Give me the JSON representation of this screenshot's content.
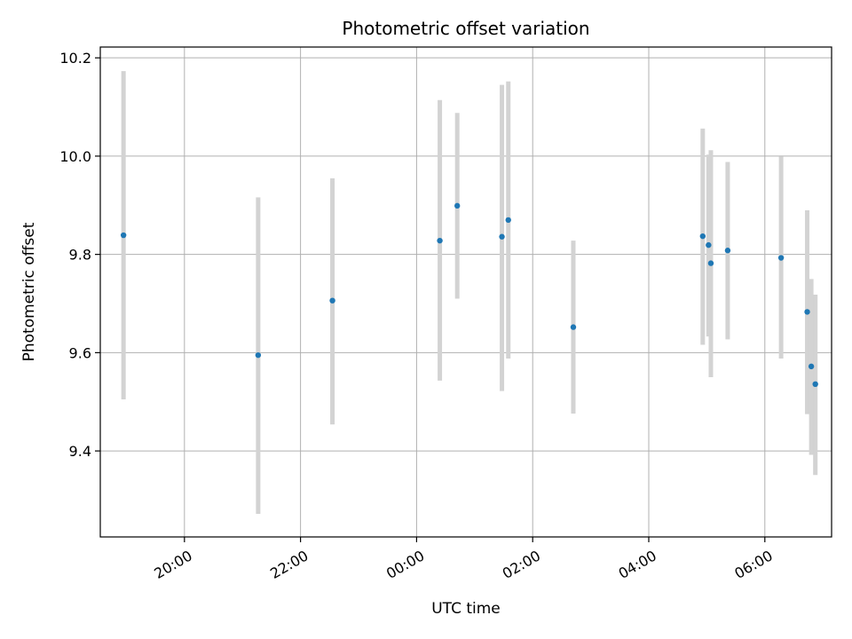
{
  "chart_data": {
    "type": "scatter",
    "title": "Photometric offset variation",
    "xlabel": "UTC time",
    "ylabel": "Photometric offset",
    "grid": true,
    "legend": "none",
    "x_unit": "UTC hours (24+ = next day)",
    "xlim": [
      18.55,
      31.15
    ],
    "ylim": [
      9.225,
      10.222
    ],
    "x_ticks": [
      {
        "value": 20,
        "label": "20:00"
      },
      {
        "value": 22,
        "label": "22:00"
      },
      {
        "value": 24,
        "label": "00:00"
      },
      {
        "value": 26,
        "label": "02:00"
      },
      {
        "value": 28,
        "label": "04:00"
      },
      {
        "value": 30,
        "label": "06:00"
      }
    ],
    "y_ticks": [
      {
        "value": 9.4,
        "label": "9.4"
      },
      {
        "value": 9.6,
        "label": "9.6"
      },
      {
        "value": 9.8,
        "label": "9.8"
      },
      {
        "value": 10.0,
        "label": "10.0"
      },
      {
        "value": 10.2,
        "label": "10.2"
      }
    ],
    "colors": {
      "point": "#1f77b4",
      "errorbar": "#d3d3d3",
      "grid": "#b0b0b0"
    },
    "points": [
      {
        "x": 18.95,
        "y": 9.839,
        "low": 9.505,
        "high": 10.173
      },
      {
        "x": 21.27,
        "y": 9.595,
        "low": 9.272,
        "high": 9.916
      },
      {
        "x": 22.55,
        "y": 9.706,
        "low": 9.454,
        "high": 9.955
      },
      {
        "x": 24.4,
        "y": 9.828,
        "low": 9.543,
        "high": 10.114
      },
      {
        "x": 24.7,
        "y": 9.899,
        "low": 9.71,
        "high": 10.088
      },
      {
        "x": 25.47,
        "y": 9.836,
        "low": 9.522,
        "high": 10.145
      },
      {
        "x": 25.58,
        "y": 9.87,
        "low": 9.588,
        "high": 10.152
      },
      {
        "x": 26.7,
        "y": 9.652,
        "low": 9.476,
        "high": 9.828
      },
      {
        "x": 28.93,
        "y": 9.837,
        "low": 9.616,
        "high": 10.056
      },
      {
        "x": 29.03,
        "y": 9.819,
        "low": 9.633,
        "high": 10.003
      },
      {
        "x": 29.07,
        "y": 9.782,
        "low": 9.55,
        "high": 10.012
      },
      {
        "x": 29.36,
        "y": 9.808,
        "low": 9.627,
        "high": 9.988
      },
      {
        "x": 30.28,
        "y": 9.793,
        "low": 9.588,
        "high": 9.999
      },
      {
        "x": 30.73,
        "y": 9.683,
        "low": 9.475,
        "high": 9.89
      },
      {
        "x": 30.8,
        "y": 9.572,
        "low": 9.392,
        "high": 9.75
      },
      {
        "x": 30.87,
        "y": 9.536,
        "low": 9.351,
        "high": 9.718
      }
    ]
  }
}
